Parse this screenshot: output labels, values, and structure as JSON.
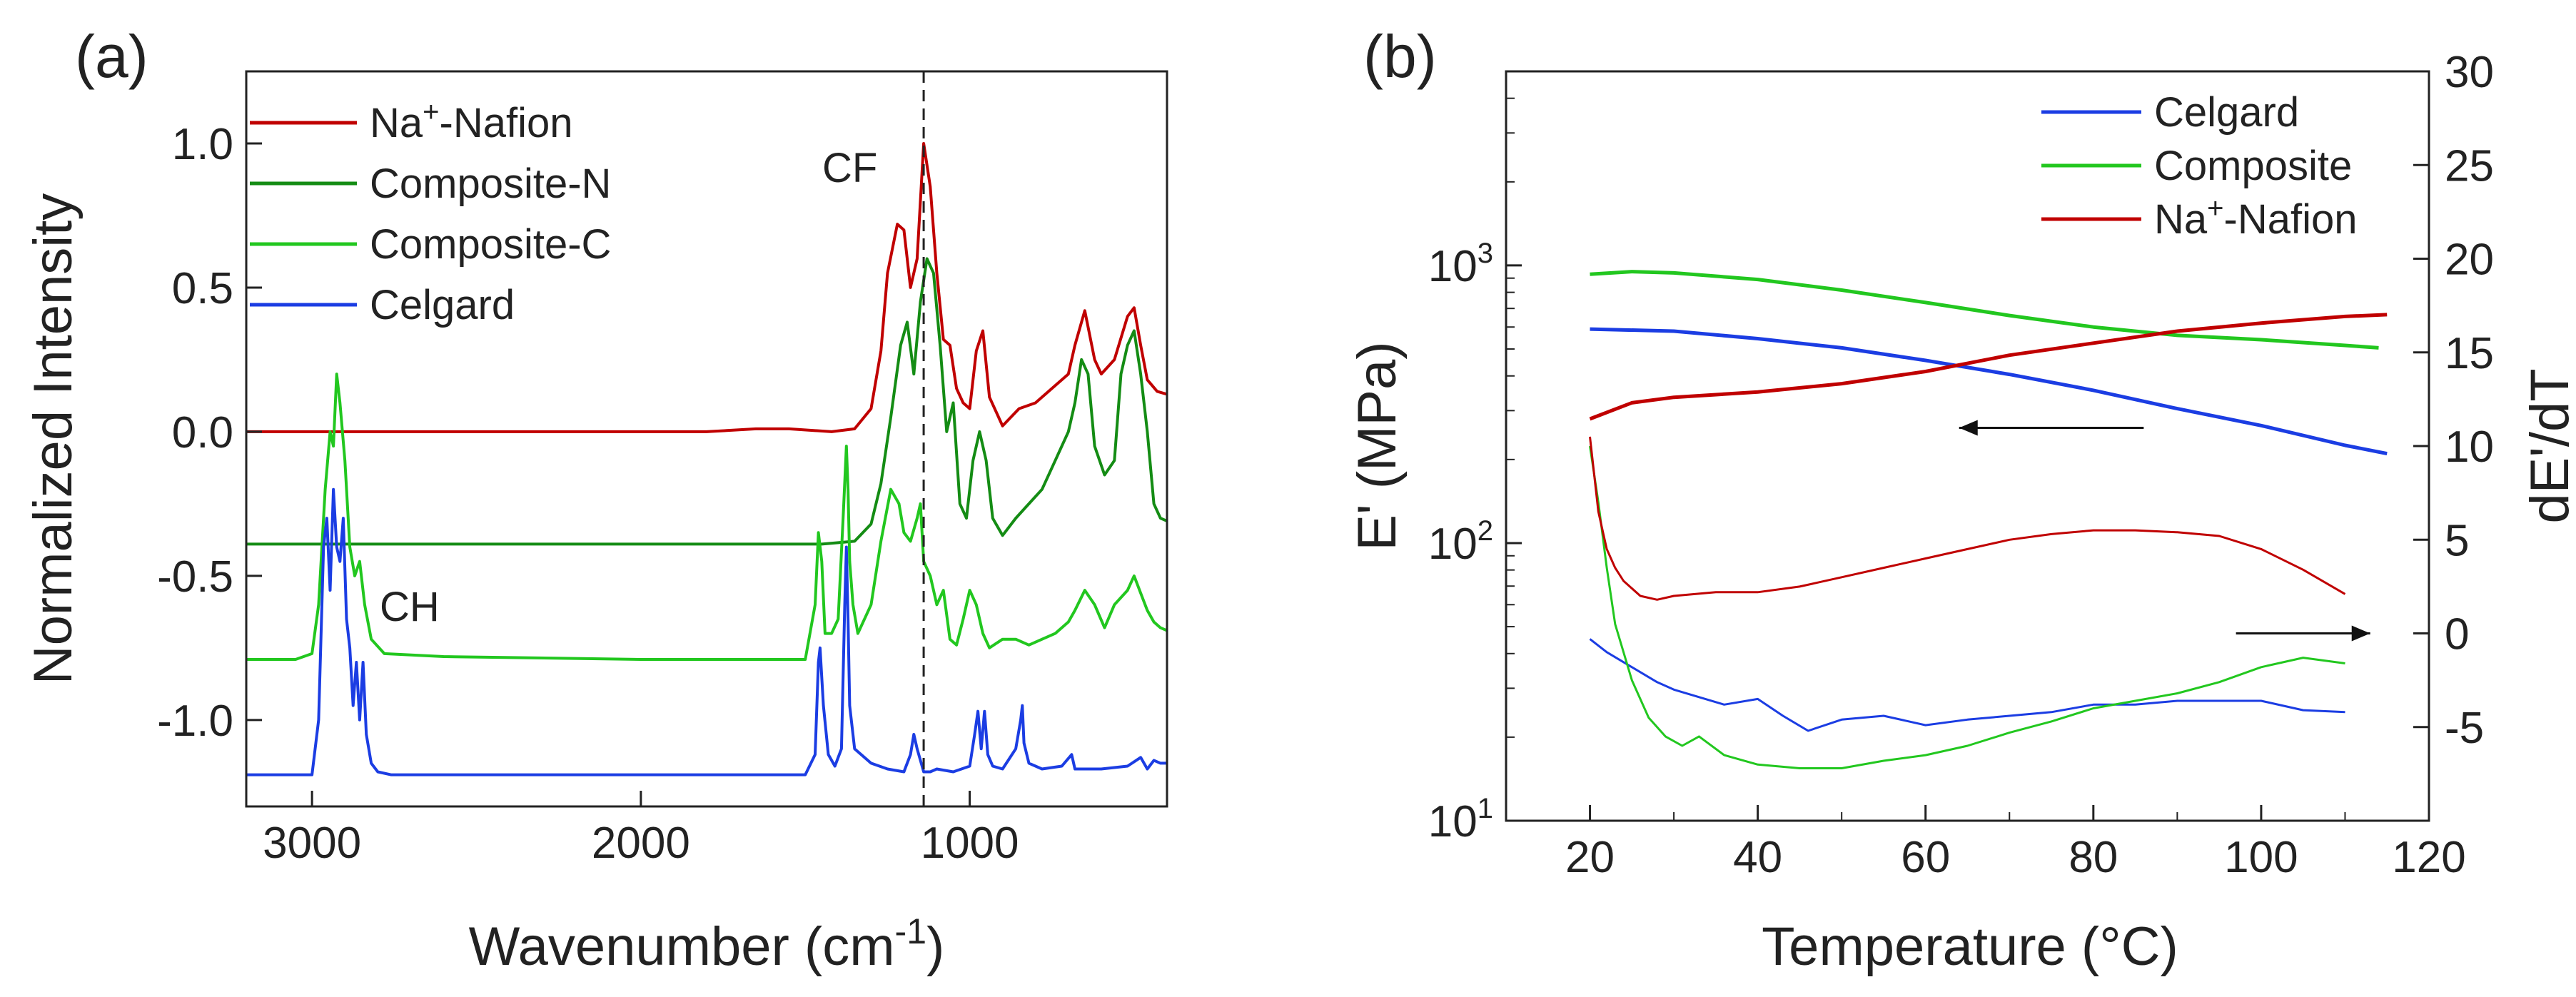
{
  "chart_data": [
    {
      "type": "line",
      "panel_label": "(a)",
      "xlabel": "Wavenumber (cm-1)",
      "xlabel_main": "Wavenumber (cm",
      "xlabel_sup": "-1",
      "xlabel_close": ")",
      "ylabel": "Normalized Intensity",
      "xlim": [
        3200,
        400
      ],
      "ylim": [
        -1.3,
        1.25
      ],
      "x_reversed": true,
      "xticks": [
        3000,
        2000,
        1000
      ],
      "xtick_labels": [
        "3000",
        "2000",
        "1000"
      ],
      "yticks": [
        1.0,
        0.5,
        0.0,
        -0.5,
        -1.0
      ],
      "ytick_labels": [
        "1.0",
        "0.5",
        "0.0",
        "-0.5",
        "-1.0"
      ],
      "reference_line_x": 1140,
      "annotations": [
        {
          "text": "CF",
          "x": 1340,
          "y": 1.0
        },
        {
          "text": "CH",
          "x": 2600,
          "y": -0.56
        }
      ],
      "legend": {
        "position": "top-left",
        "entries": [
          {
            "label": "Na+-Nafion",
            "parts": [
              "Na",
              "+",
              "-Nafion"
            ],
            "color": "#c00000"
          },
          {
            "label": "Composite-N",
            "color": "#148c14"
          },
          {
            "label": "Composite-C",
            "color": "#22c71f"
          },
          {
            "label": "Celgard",
            "color": "#1b3de3"
          }
        ]
      },
      "series": [
        {
          "name": "Na+-Nafion",
          "color": "#c00000",
          "x": [
            3200,
            3000,
            2500,
            2000,
            1800,
            1650,
            1550,
            1420,
            1350,
            1300,
            1270,
            1250,
            1220,
            1200,
            1180,
            1160,
            1140,
            1120,
            1100,
            1080,
            1060,
            1040,
            1020,
            1000,
            980,
            960,
            940,
            900,
            850,
            800,
            750,
            700,
            680,
            650,
            620,
            600,
            560,
            520,
            500,
            480,
            460,
            430,
            400
          ],
          "y": [
            0,
            0,
            0,
            0,
            0,
            0.01,
            0.01,
            0,
            0.01,
            0.08,
            0.28,
            0.55,
            0.72,
            0.7,
            0.5,
            0.6,
            1.0,
            0.85,
            0.55,
            0.32,
            0.3,
            0.15,
            0.1,
            0.08,
            0.28,
            0.35,
            0.12,
            0.02,
            0.08,
            0.1,
            0.15,
            0.2,
            0.3,
            0.42,
            0.25,
            0.2,
            0.25,
            0.4,
            0.43,
            0.3,
            0.18,
            0.14,
            0.13
          ]
        },
        {
          "name": "Composite-N",
          "color": "#148c14",
          "x": [
            3200,
            3000,
            2500,
            2000,
            1700,
            1450,
            1350,
            1300,
            1270,
            1240,
            1210,
            1190,
            1170,
            1150,
            1130,
            1110,
            1090,
            1070,
            1050,
            1030,
            1010,
            990,
            970,
            950,
            930,
            900,
            860,
            820,
            780,
            740,
            700,
            680,
            660,
            640,
            620,
            590,
            560,
            540,
            520,
            500,
            480,
            460,
            440,
            420,
            400
          ],
          "y": [
            -0.39,
            -0.39,
            -0.39,
            -0.39,
            -0.39,
            -0.39,
            -0.38,
            -0.32,
            -0.18,
            0.05,
            0.3,
            0.38,
            0.2,
            0.45,
            0.6,
            0.55,
            0.3,
            0.0,
            0.1,
            -0.25,
            -0.3,
            -0.1,
            0.0,
            -0.1,
            -0.3,
            -0.36,
            -0.3,
            -0.25,
            -0.2,
            -0.1,
            0.0,
            0.1,
            0.25,
            0.2,
            -0.05,
            -0.15,
            -0.1,
            0.2,
            0.3,
            0.35,
            0.2,
            0.0,
            -0.25,
            -0.3,
            -0.31
          ]
        },
        {
          "name": "Composite-C",
          "color": "#22c71f",
          "x": [
            3200,
            3050,
            3000,
            2980,
            2960,
            2945,
            2935,
            2925,
            2915,
            2900,
            2885,
            2870,
            2855,
            2840,
            2820,
            2780,
            2600,
            2000,
            1700,
            1500,
            1470,
            1460,
            1450,
            1440,
            1420,
            1400,
            1385,
            1375,
            1370,
            1365,
            1355,
            1340,
            1300,
            1270,
            1240,
            1215,
            1200,
            1180,
            1160,
            1150,
            1140,
            1120,
            1100,
            1080,
            1060,
            1040,
            1020,
            1000,
            980,
            960,
            940,
            900,
            860,
            820,
            780,
            740,
            700,
            680,
            650,
            620,
            590,
            560,
            520,
            500,
            480,
            460,
            440,
            420,
            400
          ],
          "y": [
            -0.79,
            -0.79,
            -0.77,
            -0.6,
            -0.2,
            0.0,
            -0.05,
            0.2,
            0.1,
            -0.1,
            -0.4,
            -0.5,
            -0.45,
            -0.6,
            -0.72,
            -0.77,
            -0.78,
            -0.79,
            -0.79,
            -0.79,
            -0.6,
            -0.35,
            -0.45,
            -0.7,
            -0.7,
            -0.65,
            -0.3,
            -0.05,
            -0.2,
            -0.45,
            -0.6,
            -0.7,
            -0.6,
            -0.38,
            -0.2,
            -0.25,
            -0.35,
            -0.38,
            -0.3,
            -0.25,
            -0.45,
            -0.5,
            -0.6,
            -0.55,
            -0.72,
            -0.74,
            -0.65,
            -0.55,
            -0.6,
            -0.7,
            -0.75,
            -0.72,
            -0.72,
            -0.74,
            -0.72,
            -0.7,
            -0.66,
            -0.62,
            -0.55,
            -0.6,
            -0.68,
            -0.6,
            -0.55,
            -0.5,
            -0.56,
            -0.62,
            -0.66,
            -0.68,
            -0.69
          ]
        },
        {
          "name": "Celgard",
          "color": "#1b3de3",
          "x": [
            3200,
            3000,
            2980,
            2965,
            2955,
            2945,
            2935,
            2925,
            2915,
            2905,
            2895,
            2885,
            2875,
            2865,
            2855,
            2845,
            2835,
            2820,
            2800,
            2760,
            2000,
            1600,
            1500,
            1470,
            1460,
            1455,
            1445,
            1430,
            1410,
            1390,
            1380,
            1375,
            1370,
            1365,
            1350,
            1300,
            1250,
            1200,
            1180,
            1170,
            1160,
            1140,
            1120,
            1100,
            1050,
            1000,
            985,
            975,
            965,
            955,
            945,
            930,
            900,
            860,
            845,
            840,
            835,
            820,
            780,
            720,
            690,
            680,
            660,
            600,
            520,
            480,
            460,
            440,
            420,
            400
          ],
          "y": [
            -1.19,
            -1.19,
            -1.0,
            -0.4,
            -0.3,
            -0.55,
            -0.2,
            -0.4,
            -0.45,
            -0.3,
            -0.65,
            -0.75,
            -0.95,
            -0.8,
            -1.0,
            -0.8,
            -1.05,
            -1.15,
            -1.18,
            -1.19,
            -1.19,
            -1.19,
            -1.19,
            -1.12,
            -0.8,
            -0.75,
            -0.95,
            -1.12,
            -1.16,
            -1.1,
            -0.6,
            -0.4,
            -0.65,
            -0.95,
            -1.1,
            -1.15,
            -1.17,
            -1.18,
            -1.12,
            -1.05,
            -1.1,
            -1.18,
            -1.18,
            -1.17,
            -1.18,
            -1.16,
            -1.05,
            -0.97,
            -1.1,
            -0.97,
            -1.12,
            -1.16,
            -1.17,
            -1.1,
            -1.0,
            -0.95,
            -1.08,
            -1.15,
            -1.17,
            -1.16,
            -1.12,
            -1.17,
            -1.17,
            -1.17,
            -1.16,
            -1.13,
            -1.17,
            -1.14,
            -1.15,
            -1.15
          ]
        }
      ]
    },
    {
      "type": "line",
      "panel_label": "(b)",
      "xlabel": "Temperature (°C)",
      "ylabel_left": "E' (MPa)",
      "ylabel_right": "dE'/dT",
      "xlim": [
        10,
        120
      ],
      "xticks": [
        20,
        40,
        60,
        80,
        100,
        120
      ],
      "xtick_labels": [
        "20",
        "40",
        "60",
        "80",
        "100",
        "120"
      ],
      "ylim_left_log": [
        10,
        5000
      ],
      "yticks_left": [
        10,
        100,
        1000
      ],
      "ytick_left_labels": [
        {
          "base": "10",
          "exp": "1"
        },
        {
          "base": "10",
          "exp": "2"
        },
        {
          "base": "10",
          "exp": "3"
        }
      ],
      "ylim_right": [
        -10,
        30
      ],
      "yticks_right": [
        -5,
        0,
        5,
        10,
        15,
        20,
        25,
        30
      ],
      "ytick_right_labels": [
        "-5",
        "0",
        "5",
        "10",
        "15",
        "20",
        "25",
        "30"
      ],
      "arrows": [
        {
          "direction": "left",
          "axis": "left",
          "x_from": 86,
          "x_to": 64,
          "y": 260
        },
        {
          "direction": "right",
          "axis": "right",
          "x_from": 97,
          "x_to": 113,
          "y": 0
        }
      ],
      "legend": {
        "position": "top-right",
        "entries": [
          {
            "label": "Celgard",
            "color": "#1b3de3"
          },
          {
            "label": "Composite",
            "color": "#22c71f"
          },
          {
            "label": "Na+-Nafion",
            "parts": [
              "Na",
              "+",
              "-Nafion"
            ],
            "color": "#c00000"
          }
        ]
      },
      "series": [
        {
          "name": "Celgard E'",
          "axis": "left",
          "color": "#1b3de3",
          "x": [
            20,
            30,
            40,
            50,
            60,
            70,
            80,
            90,
            100,
            110,
            115
          ],
          "y": [
            590,
            580,
            545,
            505,
            455,
            405,
            355,
            305,
            265,
            225,
            210
          ]
        },
        {
          "name": "Composite E'",
          "axis": "left",
          "color": "#22c71f",
          "x": [
            20,
            25,
            30,
            40,
            50,
            60,
            70,
            80,
            90,
            100,
            110,
            114
          ],
          "y": [
            930,
            950,
            940,
            890,
            815,
            735,
            660,
            600,
            560,
            540,
            515,
            505
          ]
        },
        {
          "name": "Na+-Nafion E'",
          "axis": "left",
          "color": "#c00000",
          "x": [
            20,
            25,
            30,
            40,
            50,
            60,
            70,
            80,
            90,
            100,
            110,
            115
          ],
          "y": [
            280,
            320,
            335,
            350,
            375,
            415,
            475,
            525,
            580,
            620,
            655,
            665
          ]
        },
        {
          "name": "Celgard dE'/dT",
          "axis": "right",
          "color": "#1b3de3",
          "x": [
            20,
            22,
            25,
            28,
            30,
            33,
            36,
            40,
            43,
            46,
            50,
            55,
            60,
            65,
            70,
            75,
            80,
            85,
            90,
            95,
            100,
            105,
            110
          ],
          "y": [
            -0.3,
            -1.0,
            -1.8,
            -2.6,
            -3.0,
            -3.4,
            -3.8,
            -3.5,
            -4.4,
            -5.2,
            -4.6,
            -4.4,
            -4.9,
            -4.6,
            -4.4,
            -4.2,
            -3.8,
            -3.8,
            -3.6,
            -3.6,
            -3.6,
            -4.1,
            -4.2
          ]
        },
        {
          "name": "Composite dE'/dT",
          "axis": "right",
          "color": "#22c71f",
          "x": [
            20,
            21,
            22,
            23,
            25,
            27,
            29,
            31,
            33,
            36,
            40,
            45,
            50,
            55,
            60,
            65,
            70,
            75,
            80,
            85,
            90,
            95,
            100,
            105,
            110
          ],
          "y": [
            10,
            7,
            3.5,
            0.5,
            -2.5,
            -4.5,
            -5.5,
            -6.0,
            -5.5,
            -6.5,
            -7.0,
            -7.2,
            -7.2,
            -6.8,
            -6.5,
            -6.0,
            -5.3,
            -4.7,
            -4.0,
            -3.6,
            -3.2,
            -2.6,
            -1.8,
            -1.3,
            -1.6
          ]
        },
        {
          "name": "Na+-Nafion dE'/dT",
          "axis": "right",
          "color": "#c00000",
          "x": [
            20,
            21,
            22,
            23,
            24,
            26,
            28,
            30,
            35,
            40,
            45,
            50,
            55,
            60,
            65,
            70,
            75,
            80,
            85,
            90,
            95,
            100,
            105,
            110
          ],
          "y": [
            10.5,
            6.5,
            4.5,
            3.5,
            2.8,
            2.0,
            1.8,
            2.0,
            2.2,
            2.2,
            2.5,
            3.0,
            3.5,
            4.0,
            4.5,
            5.0,
            5.3,
            5.5,
            5.5,
            5.4,
            5.2,
            4.5,
            3.4,
            2.1
          ]
        }
      ]
    }
  ]
}
